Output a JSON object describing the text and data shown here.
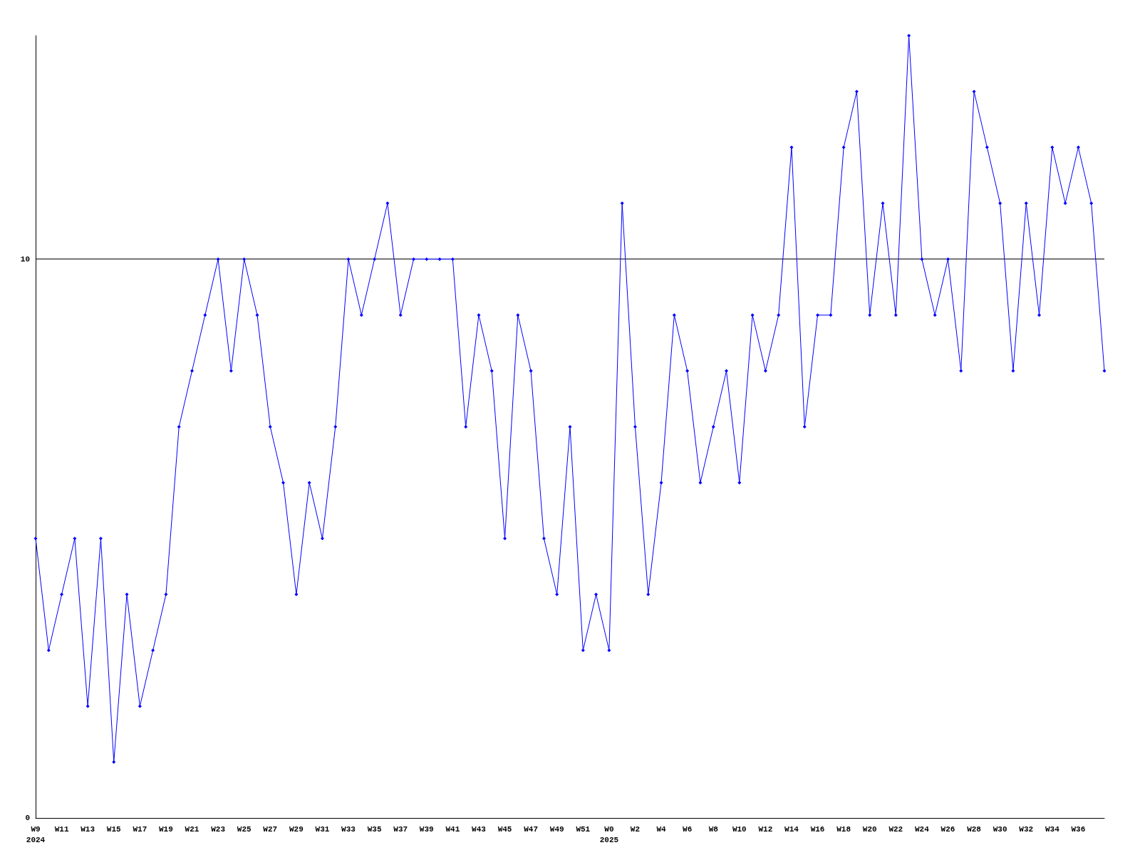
{
  "chart_data": {
    "type": "line",
    "categories": [
      "W9\n2024",
      null,
      "W11",
      null,
      "W13",
      null,
      "W15",
      null,
      "W17",
      null,
      "W19",
      null,
      "W21",
      null,
      "W23",
      null,
      "W25",
      null,
      "W27",
      null,
      "W29",
      null,
      "W31",
      null,
      "W33",
      null,
      "W35",
      null,
      "W37",
      null,
      "W39",
      null,
      "W41",
      null,
      "W43",
      null,
      "W45",
      null,
      "W47",
      null,
      "W49",
      null,
      "W51",
      null,
      "W0\n2025",
      null,
      "W2",
      null,
      "W4",
      null,
      "W6",
      null,
      "W8",
      null,
      "W10",
      null,
      "W12",
      null,
      "W14",
      null,
      "W16",
      null,
      "W18",
      null,
      "W20",
      null,
      "W22",
      null,
      "W24",
      null,
      "W26",
      null,
      "W28",
      null,
      "W30",
      null,
      "W32",
      null,
      "W34",
      null,
      "W36",
      null,
      null
    ],
    "series": [
      {
        "color": "#0000ff",
        "values": [
          5,
          3,
          4,
          5,
          2,
          5,
          1,
          4,
          2,
          3,
          4,
          7,
          8,
          9,
          10,
          8,
          10,
          9,
          7,
          6,
          4,
          6,
          5,
          7,
          10,
          9,
          10,
          11,
          9,
          10,
          10,
          10,
          10,
          7,
          9,
          8,
          5,
          9,
          8,
          5,
          4,
          7,
          3,
          4,
          3,
          11,
          7,
          4,
          6,
          9,
          8,
          6,
          7,
          8,
          6,
          9,
          8,
          9,
          12,
          7,
          9,
          9,
          12,
          13,
          9,
          11,
          9,
          14,
          10,
          9,
          10,
          8,
          13,
          12,
          11,
          8,
          11,
          9,
          12,
          11,
          12,
          11,
          8
        ]
      }
    ],
    "ylim": [
      0,
      14
    ],
    "yticks": [
      0,
      10
    ],
    "grid": "y",
    "marker": "diamond",
    "line_style": "solid"
  }
}
